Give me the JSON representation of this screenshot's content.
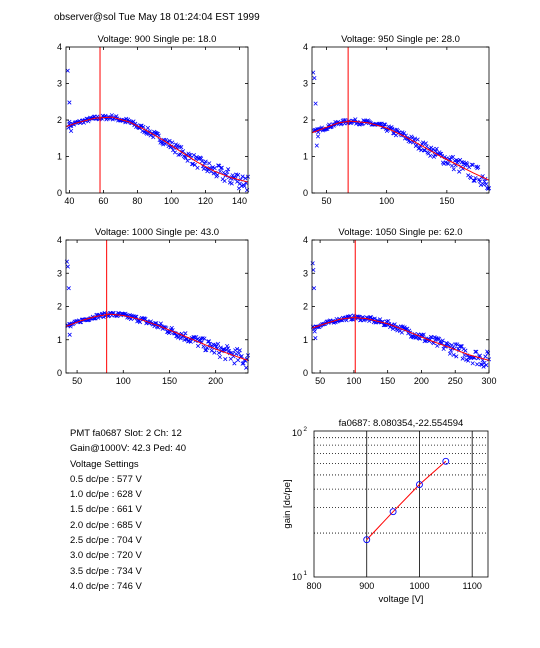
{
  "header": {
    "title": "observer@sol  Tue May 18 01:24:04 EST 1999"
  },
  "info": {
    "pmt_line": "PMT fa0687 Slot: 2 Ch: 12",
    "gain_line": "Gain@1000V: 42.3 Ped: 40",
    "settings_title": "Voltage Settings",
    "settings": [
      "0.5 dc/pe : 577 V",
      "1.0 dc/pe : 628 V",
      "1.5 dc/pe : 661 V",
      "2.0 dc/pe : 685 V",
      "2.5 dc/pe : 704 V",
      "3.0 dc/pe : 720 V",
      "3.5 dc/pe : 734 V",
      "4.0 dc/pe : 746 V"
    ]
  },
  "colors": {
    "fit": "#ff0000",
    "points": "#0000ff",
    "marker": "#ff0000",
    "axes": "#000000"
  },
  "chart_data": [
    {
      "type": "scatter",
      "title": "Voltage: 900 Single pe: 18.0",
      "xlim": [
        38,
        145
      ],
      "ylim": [
        0,
        4
      ],
      "xticks": [
        40,
        60,
        80,
        100,
        120,
        140
      ],
      "yticks": [
        0,
        1,
        2,
        3,
        4
      ],
      "marker_x": 58,
      "fit": [
        [
          38,
          1.82
        ],
        [
          45,
          1.93
        ],
        [
          55,
          2.05
        ],
        [
          65,
          2.08
        ],
        [
          75,
          1.95
        ],
        [
          85,
          1.72
        ],
        [
          95,
          1.45
        ],
        [
          105,
          1.15
        ],
        [
          115,
          0.85
        ],
        [
          125,
          0.6
        ],
        [
          135,
          0.42
        ],
        [
          145,
          0.3
        ]
      ],
      "outliers": [
        [
          39,
          3.35
        ],
        [
          40,
          2.48
        ],
        [
          40,
          1.95
        ],
        [
          41,
          1.7
        ]
      ]
    },
    {
      "type": "scatter",
      "title": "Voltage: 950 Single pe: 28.0",
      "xlim": [
        38,
        185
      ],
      "ylim": [
        0,
        4
      ],
      "xticks": [
        50,
        100,
        150
      ],
      "yticks": [
        0,
        1,
        2,
        3,
        4
      ],
      "marker_x": 68,
      "fit": [
        [
          38,
          1.65
        ],
        [
          50,
          1.8
        ],
        [
          60,
          1.92
        ],
        [
          70,
          1.97
        ],
        [
          85,
          1.92
        ],
        [
          100,
          1.78
        ],
        [
          115,
          1.55
        ],
        [
          130,
          1.28
        ],
        [
          145,
          1.0
        ],
        [
          160,
          0.75
        ],
        [
          172,
          0.55
        ],
        [
          185,
          0.35
        ]
      ],
      "outliers": [
        [
          39,
          3.3
        ],
        [
          40,
          3.15
        ],
        [
          41,
          2.45
        ],
        [
          42,
          1.3
        ],
        [
          43,
          1.55
        ]
      ]
    },
    {
      "type": "scatter",
      "title": "Voltage: 1000 Single pe: 43.0",
      "xlim": [
        38,
        235
      ],
      "ylim": [
        0,
        4
      ],
      "xticks": [
        50,
        100,
        150,
        200
      ],
      "yticks": [
        0,
        1,
        2,
        3,
        4
      ],
      "marker_x": 82,
      "fit": [
        [
          38,
          1.4
        ],
        [
          55,
          1.58
        ],
        [
          70,
          1.7
        ],
        [
          85,
          1.77
        ],
        [
          100,
          1.73
        ],
        [
          120,
          1.6
        ],
        [
          140,
          1.4
        ],
        [
          160,
          1.18
        ],
        [
          180,
          0.95
        ],
        [
          200,
          0.72
        ],
        [
          220,
          0.52
        ],
        [
          235,
          0.38
        ]
      ],
      "outliers": [
        [
          39,
          3.35
        ],
        [
          40,
          3.2
        ],
        [
          41,
          2.55
        ],
        [
          42,
          1.15
        ],
        [
          43,
          1.4
        ]
      ]
    },
    {
      "type": "scatter",
      "title": "Voltage: 1050 Single pe: 62.0",
      "xlim": [
        38,
        300
      ],
      "ylim": [
        0,
        4
      ],
      "xticks": [
        50,
        100,
        150,
        200,
        250,
        300
      ],
      "yticks": [
        0,
        1,
        2,
        3,
        4
      ],
      "marker_x": 102,
      "fit": [
        [
          38,
          1.35
        ],
        [
          60,
          1.5
        ],
        [
          80,
          1.62
        ],
        [
          100,
          1.67
        ],
        [
          120,
          1.63
        ],
        [
          150,
          1.48
        ],
        [
          180,
          1.25
        ],
        [
          210,
          1.0
        ],
        [
          240,
          0.78
        ],
        [
          270,
          0.55
        ],
        [
          300,
          0.38
        ]
      ],
      "outliers": [
        [
          39,
          3.3
        ],
        [
          40,
          3.1
        ],
        [
          41,
          2.55
        ],
        [
          42,
          1.25
        ],
        [
          43,
          1.05
        ]
      ]
    },
    {
      "type": "line",
      "title": "fa0687: 8.080354,-22.554594",
      "xlabel": "voltage [V]",
      "ylabel": "gain [dc/pe]",
      "xlim": [
        800,
        1130
      ],
      "ylim": [
        10,
        100
      ],
      "yscale": "log",
      "xticks": [
        800,
        900,
        1000,
        1100
      ],
      "grid": true,
      "x": [
        900,
        950,
        1000,
        1050
      ],
      "y": [
        18.0,
        28.0,
        43.0,
        62.0
      ]
    }
  ]
}
